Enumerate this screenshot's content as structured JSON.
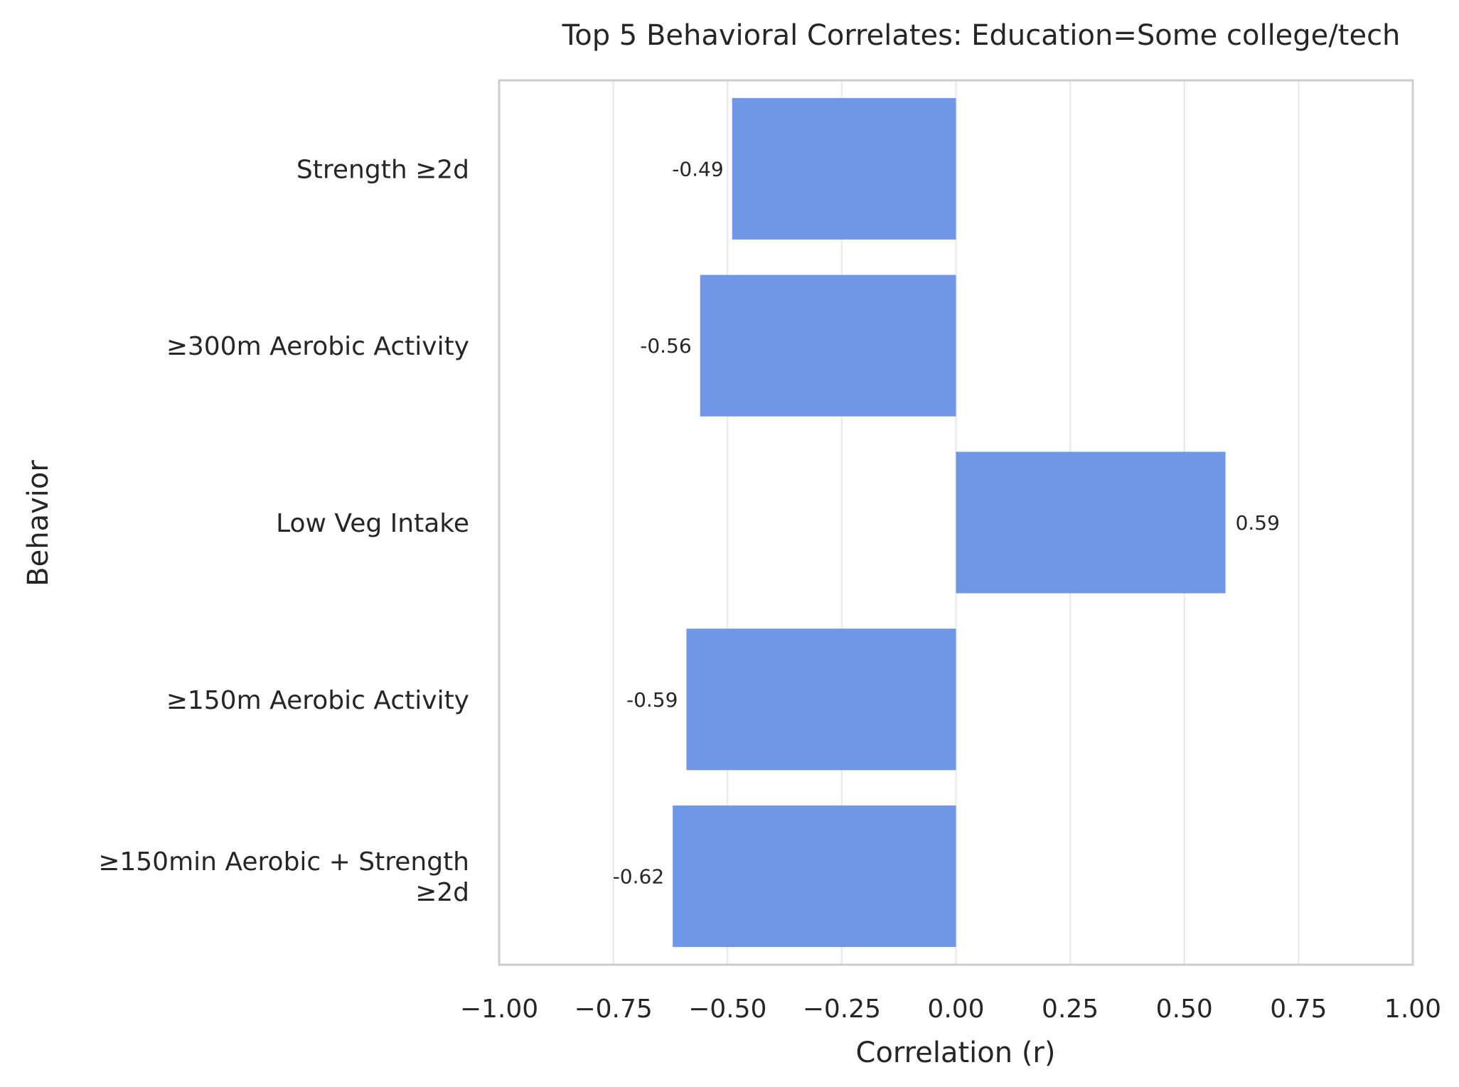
{
  "chart_data": {
    "type": "bar",
    "orientation": "horizontal",
    "title": "Top 5 Behavioral Correlates: Education=Some college/tech",
    "xlabel": "Correlation (r)",
    "ylabel": "Behavior",
    "xlim": [
      -1.0,
      1.0
    ],
    "xticks": [
      "−1.00",
      "−0.75",
      "−0.50",
      "−0.25",
      "0.00",
      "0.25",
      "0.50",
      "0.75",
      "1.00"
    ],
    "xtick_values": [
      -1.0,
      -0.75,
      -0.5,
      -0.25,
      0.0,
      0.25,
      0.5,
      0.75,
      1.0
    ],
    "grid": "vertical",
    "categories": [
      [
        "Strength ≥2d"
      ],
      [
        "≥300m Aerobic Activity"
      ],
      [
        "Low Veg Intake"
      ],
      [
        "≥150m Aerobic Activity"
      ],
      [
        "≥150min Aerobic + Strength",
        "≥2d"
      ]
    ],
    "values": [
      -0.49,
      -0.56,
      0.59,
      -0.59,
      -0.62
    ],
    "value_labels": [
      "-0.49",
      "-0.56",
      "0.59",
      "-0.59",
      "-0.62"
    ],
    "bar_color": "#6f97e5"
  }
}
